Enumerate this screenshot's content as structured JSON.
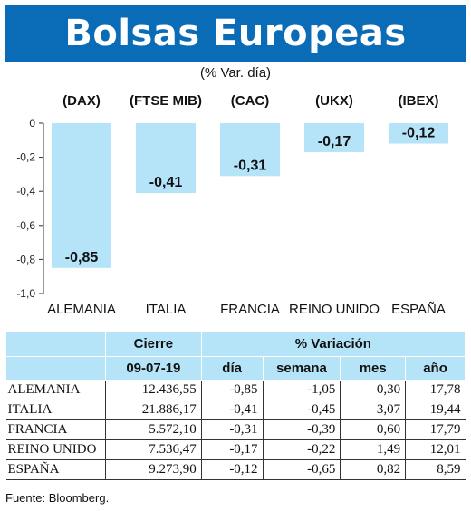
{
  "title": "Bolsas Europeas",
  "subtitle": "(% Var. día)",
  "chart_data": {
    "type": "bar",
    "categories": [
      "ALEMANIA",
      "ITALIA",
      "FRANCIA",
      "REINO UNIDO",
      "ESPAÑA"
    ],
    "index_labels": [
      "(DAX)",
      "(FTSE MIB)",
      "(CAC)",
      "(UKX)",
      "(IBEX)"
    ],
    "values": [
      -0.85,
      -0.41,
      -0.31,
      -0.17,
      -0.12
    ],
    "value_labels": [
      "-0,85",
      "-0,41",
      "-0,31",
      "-0,17",
      "-0,12"
    ],
    "yticks": [
      "0",
      "-0,2",
      "-0,4",
      "-0,6",
      "-0,8",
      "-1,0"
    ],
    "ylim": [
      -1.0,
      0
    ],
    "grid": false,
    "bar_color": "#b5e4f9"
  },
  "table": {
    "header_cierre": "Cierre",
    "header_variacion": "% Variación",
    "date": "09-07-19",
    "sub_headers": [
      "día",
      "semana",
      "mes",
      "año"
    ],
    "rows": [
      {
        "country": "ALEMANIA",
        "cierre": "12.436,55",
        "dia": "-0,85",
        "semana": "-1,05",
        "mes": "0,30",
        "ano": "17,78"
      },
      {
        "country": "ITALIA",
        "cierre": "21.886,17",
        "dia": "-0,41",
        "semana": "-0,45",
        "mes": "3,07",
        "ano": "19,44"
      },
      {
        "country": "FRANCIA",
        "cierre": "5.572,10",
        "dia": "-0,31",
        "semana": "-0,39",
        "mes": "0,60",
        "ano": "17,79"
      },
      {
        "country": "REINO UNIDO",
        "cierre": "7.536,47",
        "dia": "-0,17",
        "semana": "-0,22",
        "mes": "1,49",
        "ano": "12,01"
      },
      {
        "country": "ESPAÑA",
        "cierre": "9.273,90",
        "dia": "-0,12",
        "semana": "-0,65",
        "mes": "0,82",
        "ano": "8,59"
      }
    ]
  },
  "source": "Fuente: Bloomberg."
}
